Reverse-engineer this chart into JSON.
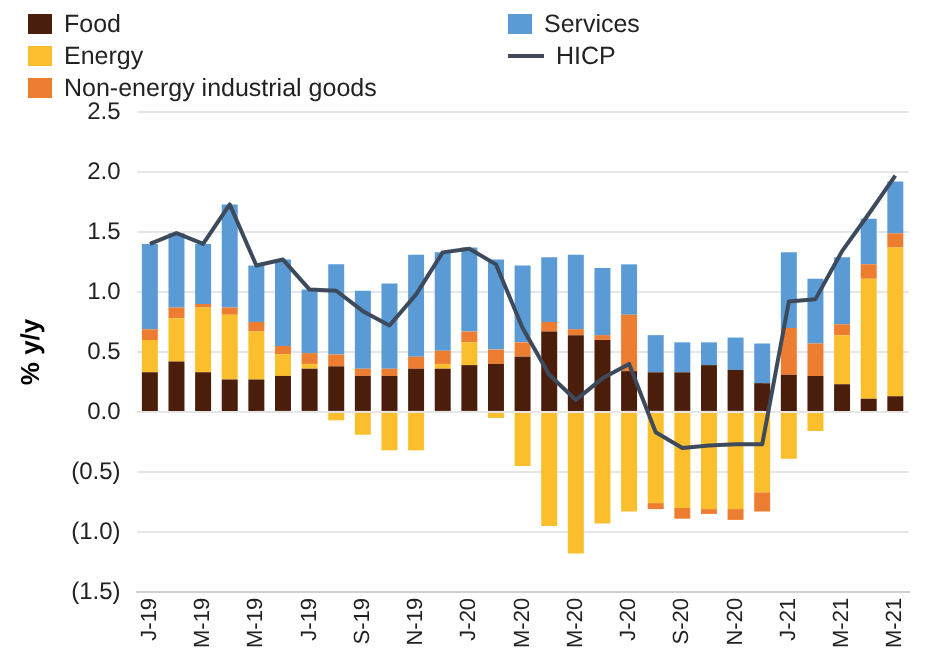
{
  "chart_data": {
    "type": "bar",
    "stacked": true,
    "ylabel": "% y/y",
    "categories": [
      "J-19",
      null,
      "M-19",
      null,
      "M-19",
      null,
      "J-19",
      null,
      "S-19",
      null,
      "N-19",
      null,
      "J-20",
      null,
      "M-20",
      null,
      "M-20",
      null,
      "J-20",
      null,
      "S-20",
      null,
      "N-20",
      null,
      "J-21",
      null,
      "M-21",
      null,
      "M-21"
    ],
    "series": [
      {
        "name": "Food",
        "color": "#4a1e0a",
        "values": [
          0.33,
          0.42,
          0.33,
          0.27,
          0.27,
          0.3,
          0.36,
          0.38,
          0.3,
          0.3,
          0.36,
          0.36,
          0.39,
          0.4,
          0.46,
          0.67,
          0.64,
          0.6,
          0.34,
          0.33,
          0.33,
          0.39,
          0.35,
          0.24,
          0.31,
          0.3,
          0.23,
          0.11,
          0.13
        ]
      },
      {
        "name": "Energy",
        "color": "#fbbf2d",
        "values": [
          0.27,
          0.36,
          0.54,
          0.54,
          0.4,
          0.18,
          0.04,
          -0.07,
          -0.19,
          -0.32,
          -0.32,
          0.04,
          0.19,
          -0.05,
          -0.45,
          -0.95,
          -1.18,
          -0.93,
          -0.83,
          -0.76,
          -0.8,
          -0.81,
          -0.81,
          -0.67,
          -0.39,
          -0.16,
          0.41,
          1.0,
          1.24
        ]
      },
      {
        "name": "Non-energy industrial goods",
        "color": "#ec7d31",
        "values": [
          0.09,
          0.09,
          0.03,
          0.06,
          0.08,
          0.07,
          0.09,
          0.1,
          0.06,
          0.06,
          0.1,
          0.11,
          0.09,
          0.12,
          0.12,
          0.08,
          0.05,
          0.04,
          0.47,
          -0.05,
          -0.09,
          -0.04,
          -0.09,
          -0.16,
          0.39,
          0.27,
          0.09,
          0.12,
          0.12
        ]
      },
      {
        "name": "Services",
        "color": "#5b9bd5",
        "values": [
          0.71,
          0.62,
          0.5,
          0.86,
          0.47,
          0.72,
          0.53,
          0.75,
          0.65,
          0.71,
          0.85,
          0.82,
          0.7,
          0.75,
          0.64,
          0.54,
          0.62,
          0.56,
          0.42,
          0.31,
          0.25,
          0.19,
          0.27,
          0.33,
          0.63,
          0.54,
          0.56,
          0.38,
          0.43
        ]
      },
      {
        "name": "HICP",
        "type": "line",
        "color": "#3c4a5c",
        "values": [
          1.4,
          1.49,
          1.4,
          1.73,
          1.22,
          1.27,
          1.02,
          1.01,
          0.84,
          0.72,
          0.98,
          1.33,
          1.36,
          1.23,
          0.7,
          0.31,
          0.1,
          0.28,
          0.4,
          -0.17,
          -0.3,
          -0.28,
          -0.27,
          -0.27,
          0.92,
          0.94,
          1.34,
          1.65,
          1.97
        ]
      }
    ],
    "ylim": [
      -1.5,
      2.5
    ],
    "yticks": [
      {
        "value": -1.5,
        "label": "(1.5)"
      },
      {
        "value": -1,
        "label": "(1.0)"
      },
      {
        "value": -0.5,
        "label": "(0.5)"
      },
      {
        "value": 0,
        "label": "0.0"
      },
      {
        "value": 0.5,
        "label": "0.5"
      },
      {
        "value": 1,
        "label": "1.0"
      },
      {
        "value": 1.5,
        "label": "1.5"
      },
      {
        "value": 2,
        "label": "2.0"
      },
      {
        "value": 2.5,
        "label": "2.5"
      }
    ],
    "grid": "y",
    "legend": "top",
    "marker": "none"
  }
}
